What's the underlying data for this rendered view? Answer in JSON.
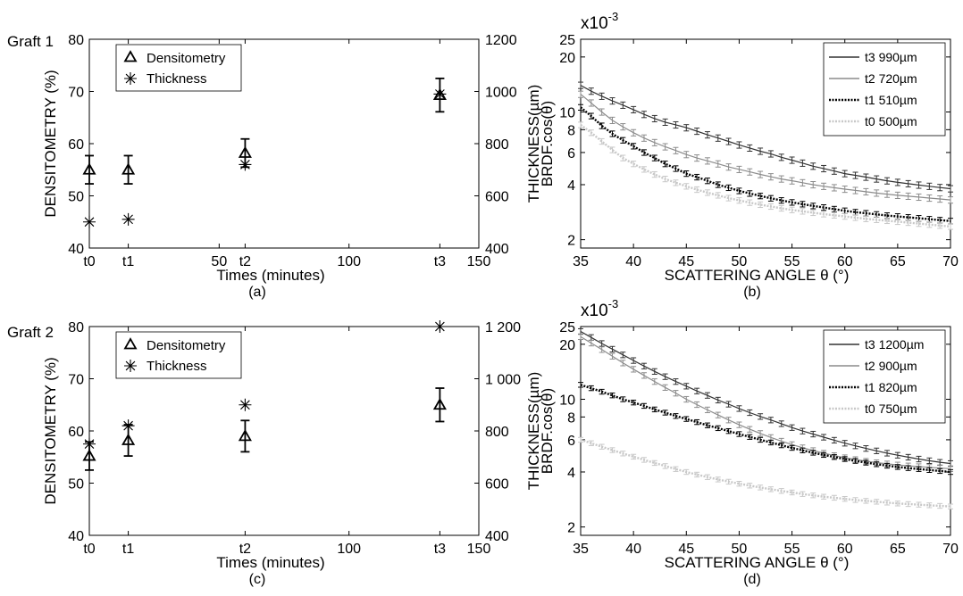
{
  "row_labels": [
    "Graft 1",
    "Graft 2"
  ],
  "chart_data": [
    {
      "id": "a",
      "type": "scatter",
      "caption": "(a)",
      "xlabel": "Times (minutes)",
      "ylabel": "DENSITOMETRY (%)",
      "y2label": "THICKNESS(µm)",
      "xlim": [
        0,
        150
      ],
      "ylim": [
        40,
        80
      ],
      "y2lim": [
        400,
        1200
      ],
      "xticks": [
        {
          "value": 0,
          "label": "t0"
        },
        {
          "value": 15,
          "label": "t1"
        },
        {
          "value": 50,
          "label": "50"
        },
        {
          "value": 60,
          "label": "t2"
        },
        {
          "value": 100,
          "label": "100"
        },
        {
          "value": 135,
          "label": "t3"
        },
        {
          "value": 150,
          "label": "150"
        }
      ],
      "yticks": [
        {
          "value": 40,
          "label": "40"
        },
        {
          "value": 50,
          "label": "50"
        },
        {
          "value": 60,
          "label": "60"
        },
        {
          "value": 70,
          "label": "70"
        },
        {
          "value": 80,
          "label": "80"
        }
      ],
      "y2ticks": [
        {
          "value": 400,
          "label": "400"
        },
        {
          "value": 600,
          "label": "600"
        },
        {
          "value": 800,
          "label": "800"
        },
        {
          "value": 1000,
          "label": "1000"
        },
        {
          "value": 1200,
          "label": "1200"
        }
      ],
      "legend": {
        "position": "top-left",
        "entries": [
          {
            "marker": "triangle",
            "label": "Densitometry"
          },
          {
            "marker": "asterisk",
            "label": "Thickness"
          }
        ]
      },
      "series": [
        {
          "name": "Densitometry",
          "marker": "triangle",
          "axis": "left",
          "points": [
            {
              "x": 0,
              "y": 55,
              "err": 2.7
            },
            {
              "x": 15,
              "y": 55,
              "err": 2.7
            },
            {
              "x": 60,
              "y": 58.2,
              "err": 2.7
            },
            {
              "x": 135,
              "y": 69.3,
              "err": 3.2
            }
          ]
        },
        {
          "name": "Thickness",
          "marker": "asterisk",
          "axis": "right",
          "points": [
            {
              "x": 0,
              "y": 500
            },
            {
              "x": 15,
              "y": 510
            },
            {
              "x": 60,
              "y": 720
            },
            {
              "x": 135,
              "y": 990
            }
          ]
        }
      ]
    },
    {
      "id": "b",
      "type": "line",
      "caption": "(b)",
      "xlabel": "SCATTERING ANGLE θ (°)",
      "ylabel": "BRDF.cos(θ)",
      "scale_label": "x10",
      "scale_exponent": "-3",
      "yscale": "log",
      "xlim": [
        35,
        70
      ],
      "ylim": [
        1.8,
        25
      ],
      "xticks": [
        {
          "value": 35,
          "label": "35"
        },
        {
          "value": 40,
          "label": "40"
        },
        {
          "value": 45,
          "label": "45"
        },
        {
          "value": 50,
          "label": "50"
        },
        {
          "value": 55,
          "label": "55"
        },
        {
          "value": 60,
          "label": "60"
        },
        {
          "value": 65,
          "label": "65"
        },
        {
          "value": 70,
          "label": "70"
        }
      ],
      "yticks": [
        {
          "value": 2,
          "label": "2"
        },
        {
          "value": 4,
          "label": "4"
        },
        {
          "value": 6,
          "label": "6"
        },
        {
          "value": 8,
          "label": "8"
        },
        {
          "value": 10,
          "label": "10"
        },
        {
          "value": 20,
          "label": "20"
        },
        {
          "value": 25,
          "label": "25"
        }
      ],
      "legend": {
        "position": "top-right",
        "entries": [
          {
            "label": "t3 990µm",
            "color": "#333333",
            "dash": "solid"
          },
          {
            "label": "t2 720µm",
            "color": "#8c8c8c",
            "dash": "solid"
          },
          {
            "label": "t1 510µm",
            "color": "#000000",
            "dash": "dotted"
          },
          {
            "label": "t0 500µm",
            "color": "#c8c8c8",
            "dash": "dotted"
          }
        ]
      },
      "x": [
        35,
        36,
        37,
        38,
        39,
        40,
        41,
        42,
        43,
        44,
        45,
        46,
        47,
        48,
        49,
        50,
        51,
        52,
        53,
        54,
        55,
        56,
        57,
        58,
        59,
        60,
        61,
        62,
        63,
        64,
        65,
        66,
        67,
        68,
        69,
        70
      ],
      "series": [
        {
          "name": "t3 990µm",
          "color": "#333333",
          "dash": "solid",
          "marker": "errorbar",
          "rel_err": 0.04,
          "values": [
            14.0,
            13.0,
            12.2,
            11.5,
            10.9,
            10.3,
            9.7,
            9.2,
            8.8,
            8.5,
            8.2,
            7.85,
            7.5,
            7.2,
            6.9,
            6.6,
            6.35,
            6.1,
            5.9,
            5.65,
            5.45,
            5.25,
            5.05,
            4.9,
            4.75,
            4.6,
            4.5,
            4.4,
            4.3,
            4.2,
            4.12,
            4.05,
            3.98,
            3.92,
            3.86,
            3.8
          ]
        },
        {
          "name": "t2 720µm",
          "color": "#8c8c8c",
          "dash": "solid",
          "marker": "errorbar",
          "rel_err": 0.04,
          "values": [
            12.5,
            11.2,
            10.0,
            9.0,
            8.3,
            7.7,
            7.2,
            6.8,
            6.45,
            6.15,
            5.85,
            5.6,
            5.4,
            5.2,
            5.0,
            4.85,
            4.7,
            4.55,
            4.42,
            4.3,
            4.2,
            4.1,
            4.0,
            3.92,
            3.85,
            3.78,
            3.72,
            3.66,
            3.6,
            3.55,
            3.5,
            3.46,
            3.42,
            3.38,
            3.34,
            3.3
          ]
        },
        {
          "name": "t1 510µm",
          "color": "#000000",
          "dash": "dotted",
          "marker": "errorbar",
          "rel_err": 0.035,
          "values": [
            10.6,
            9.5,
            8.4,
            7.6,
            7.0,
            6.5,
            6.0,
            5.6,
            5.2,
            4.9,
            4.6,
            4.4,
            4.2,
            4.0,
            3.85,
            3.7,
            3.58,
            3.47,
            3.37,
            3.28,
            3.2,
            3.13,
            3.06,
            3.0,
            2.94,
            2.88,
            2.83,
            2.79,
            2.75,
            2.71,
            2.68,
            2.65,
            2.62,
            2.59,
            2.56,
            2.53
          ]
        },
        {
          "name": "t0 500µm",
          "color": "#c8c8c8",
          "dash": "dotted",
          "marker": "errorbar",
          "rel_err": 0.035,
          "values": [
            8.5,
            7.7,
            6.9,
            6.2,
            5.6,
            5.2,
            4.85,
            4.55,
            4.3,
            4.1,
            3.92,
            3.76,
            3.62,
            3.5,
            3.38,
            3.28,
            3.19,
            3.11,
            3.04,
            2.97,
            2.91,
            2.86,
            2.81,
            2.76,
            2.72,
            2.68,
            2.64,
            2.6,
            2.57,
            2.54,
            2.51,
            2.48,
            2.45,
            2.42,
            2.39,
            2.36
          ]
        }
      ]
    },
    {
      "id": "c",
      "type": "scatter",
      "caption": "(c)",
      "xlabel": "Times (minutes)",
      "ylabel": "DENSITOMETRY (%)",
      "y2label": "THICKNESS(µm)",
      "xlim": [
        0,
        150
      ],
      "ylim": [
        40,
        80
      ],
      "y2lim": [
        400,
        1200
      ],
      "xticks": [
        {
          "value": 0,
          "label": "t0"
        },
        {
          "value": 15,
          "label": "t1"
        },
        {
          "value": 60,
          "label": "t2"
        },
        {
          "value": 100,
          "label": "100"
        },
        {
          "value": 135,
          "label": "t3"
        },
        {
          "value": 150,
          "label": "150"
        }
      ],
      "yticks": [
        {
          "value": 40,
          "label": "40"
        },
        {
          "value": 50,
          "label": "50"
        },
        {
          "value": 60,
          "label": "60"
        },
        {
          "value": 70,
          "label": "70"
        },
        {
          "value": 80,
          "label": "80"
        }
      ],
      "y2ticks": [
        {
          "value": 400,
          "label": "400"
        },
        {
          "value": 600,
          "label": "600"
        },
        {
          "value": 800,
          "label": "800"
        },
        {
          "value": 1000,
          "label": "1 000"
        },
        {
          "value": 1200,
          "label": "1 200"
        }
      ],
      "legend": {
        "position": "top-left",
        "entries": [
          {
            "marker": "triangle",
            "label": "Densitometry"
          },
          {
            "marker": "asterisk",
            "label": "Thickness"
          }
        ]
      },
      "series": [
        {
          "name": "Densitometry",
          "marker": "triangle",
          "axis": "left",
          "points": [
            {
              "x": 0,
              "y": 55.2,
              "err": 2.7
            },
            {
              "x": 15,
              "y": 58.2,
              "err": 3.0
            },
            {
              "x": 60,
              "y": 59,
              "err": 3.0
            },
            {
              "x": 135,
              "y": 65,
              "err": 3.2
            }
          ]
        },
        {
          "name": "Thickness",
          "marker": "asterisk",
          "axis": "right",
          "points": [
            {
              "x": 0,
              "y": 750
            },
            {
              "x": 15,
              "y": 820
            },
            {
              "x": 60,
              "y": 900
            },
            {
              "x": 135,
              "y": 1200
            }
          ]
        }
      ]
    },
    {
      "id": "d",
      "type": "line",
      "caption": "(d)",
      "xlabel": "SCATTERING ANGLE θ (°)",
      "ylabel": "BRDF.cos(θ)",
      "scale_label": "x10",
      "scale_exponent": "-3",
      "yscale": "log",
      "xlim": [
        35,
        70
      ],
      "ylim": [
        1.8,
        25
      ],
      "xticks": [
        {
          "value": 35,
          "label": "35"
        },
        {
          "value": 40,
          "label": "40"
        },
        {
          "value": 45,
          "label": "45"
        },
        {
          "value": 50,
          "label": "50"
        },
        {
          "value": 55,
          "label": "55"
        },
        {
          "value": 60,
          "label": "60"
        },
        {
          "value": 65,
          "label": "65"
        },
        {
          "value": 70,
          "label": "70"
        }
      ],
      "yticks": [
        {
          "value": 2,
          "label": "2"
        },
        {
          "value": 4,
          "label": "4"
        },
        {
          "value": 6,
          "label": "6"
        },
        {
          "value": 8,
          "label": "8"
        },
        {
          "value": 10,
          "label": "10"
        },
        {
          "value": 20,
          "label": "20"
        },
        {
          "value": 25,
          "label": "25"
        }
      ],
      "legend": {
        "position": "top-right",
        "entries": [
          {
            "label": "t3 1200µm",
            "color": "#333333",
            "dash": "solid"
          },
          {
            "label": "t2 900µm",
            "color": "#8c8c8c",
            "dash": "solid"
          },
          {
            "label": "t1 820µm",
            "color": "#000000",
            "dash": "dotted"
          },
          {
            "label": "t0 750µm",
            "color": "#c8c8c8",
            "dash": "dotted"
          }
        ]
      },
      "x": [
        35,
        36,
        37,
        38,
        39,
        40,
        41,
        42,
        43,
        44,
        45,
        46,
        47,
        48,
        49,
        50,
        51,
        52,
        53,
        54,
        55,
        56,
        57,
        58,
        59,
        60,
        61,
        62,
        63,
        64,
        65,
        66,
        67,
        68,
        69,
        70
      ],
      "series": [
        {
          "name": "t3 1200µm",
          "color": "#333333",
          "dash": "solid",
          "marker": "errorbar",
          "rel_err": 0.035,
          "values": [
            23.5,
            21.8,
            20.2,
            18.8,
            17.5,
            16.3,
            15.2,
            14.2,
            13.3,
            12.5,
            11.8,
            11.1,
            10.5,
            9.9,
            9.4,
            8.9,
            8.45,
            8.05,
            7.7,
            7.35,
            7.0,
            6.7,
            6.45,
            6.2,
            5.97,
            5.75,
            5.56,
            5.38,
            5.22,
            5.07,
            4.94,
            4.82,
            4.71,
            4.61,
            4.52,
            4.45
          ]
        },
        {
          "name": "t2 900µm",
          "color": "#8c8c8c",
          "dash": "solid",
          "marker": "errorbar",
          "rel_err": 0.035,
          "values": [
            22.0,
            20.3,
            18.7,
            17.2,
            15.8,
            14.6,
            13.5,
            12.5,
            11.6,
            10.8,
            10.0,
            9.35,
            8.75,
            8.2,
            7.7,
            7.25,
            6.85,
            6.5,
            6.18,
            5.9,
            5.65,
            5.43,
            5.24,
            5.07,
            4.92,
            4.79,
            4.68,
            4.58,
            4.5,
            4.43,
            4.37,
            4.32,
            4.28,
            4.24,
            4.2,
            4.17
          ]
        },
        {
          "name": "t1 820µm",
          "color": "#000000",
          "dash": "dotted",
          "marker": "errorbar",
          "rel_err": 0.03,
          "values": [
            12.0,
            11.5,
            11.0,
            10.5,
            10.0,
            9.6,
            9.2,
            8.8,
            8.45,
            8.1,
            7.8,
            7.5,
            7.2,
            6.95,
            6.7,
            6.45,
            6.22,
            6.0,
            5.8,
            5.6,
            5.42,
            5.25,
            5.1,
            4.96,
            4.83,
            4.71,
            4.6,
            4.5,
            4.41,
            4.33,
            4.26,
            4.2,
            4.15,
            4.1,
            4.05,
            4.0
          ]
        },
        {
          "name": "t0 750µm",
          "color": "#c8c8c8",
          "dash": "dotted",
          "marker": "errorbar",
          "rel_err": 0.03,
          "values": [
            6.0,
            5.75,
            5.5,
            5.27,
            5.05,
            4.85,
            4.66,
            4.48,
            4.31,
            4.15,
            4.0,
            3.87,
            3.75,
            3.64,
            3.54,
            3.45,
            3.37,
            3.29,
            3.22,
            3.15,
            3.09,
            3.03,
            2.98,
            2.93,
            2.89,
            2.85,
            2.81,
            2.78,
            2.75,
            2.72,
            2.69,
            2.67,
            2.65,
            2.63,
            2.61,
            2.59
          ]
        }
      ]
    }
  ]
}
